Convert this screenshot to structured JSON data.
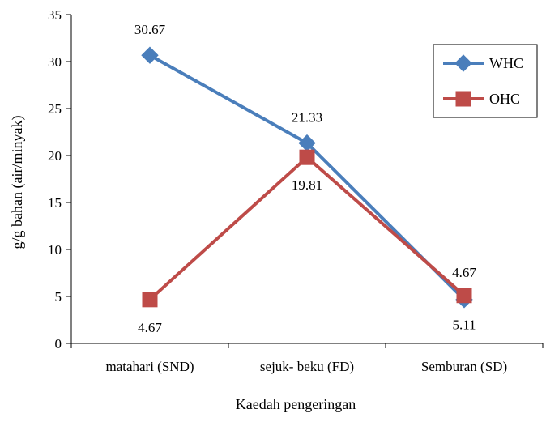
{
  "chart_data": {
    "type": "line",
    "title": "",
    "xlabel": "Kaedah pengeringan",
    "ylabel": "g/g bahan (air/minyak)",
    "categories": [
      "matahari (SND)",
      "sejuk- beku (FD)",
      "Semburan (SD)"
    ],
    "ylim": [
      0,
      35
    ],
    "yticks": [
      0,
      5,
      10,
      15,
      20,
      25,
      30,
      35
    ],
    "grid": false,
    "legend": "top-right",
    "series": [
      {
        "name": "WHC",
        "values": [
          30.67,
          21.33,
          4.67
        ],
        "labels": [
          "30.67",
          "21.33",
          "4.67"
        ],
        "color": "#4a7ebb",
        "marker": "diamond"
      },
      {
        "name": "OHC",
        "values": [
          4.67,
          19.81,
          5.11
        ],
        "labels": [
          "4.67",
          "19.81",
          "5.11"
        ],
        "color": "#be4b48",
        "marker": "square"
      }
    ]
  }
}
